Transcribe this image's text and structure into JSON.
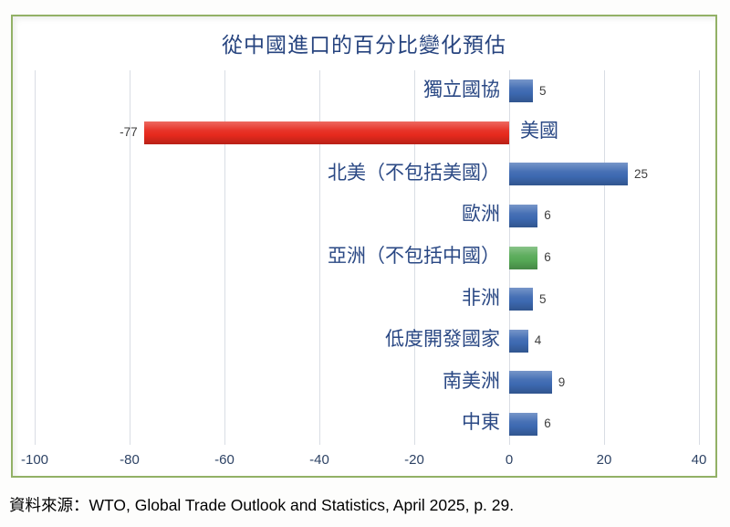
{
  "chart_data": {
    "type": "bar",
    "orientation": "horizontal",
    "title": "從中國進口的百分比變化預估",
    "categories": [
      "獨立國協",
      "美國",
      "北美（不包括美國）",
      "歐洲",
      "亞洲（不包括中國）",
      "非洲",
      "低度開發國家",
      "南美洲",
      "中東"
    ],
    "values": [
      5,
      -77,
      25,
      6,
      6,
      5,
      4,
      9,
      6
    ],
    "bar_colors": [
      "#3D69B1",
      "#E6291D",
      "#3D69B1",
      "#3D69B1",
      "#56A956",
      "#3D69B1",
      "#3D69B1",
      "#3D69B1",
      "#3D69B1"
    ],
    "xticks": [
      -100,
      -80,
      -60,
      -40,
      -20,
      0,
      20,
      40
    ],
    "xlim": [
      -100,
      40
    ],
    "grid": true,
    "value_labels": true,
    "legend": "none",
    "styles": {
      "title_color": "#27447F",
      "category_label_color": "#2A4884",
      "value_label_color": "#3F3F3F",
      "tick_label_color": "#2E4365",
      "gridline_color": "#D9DDE4",
      "frame_border_color": "#92B166",
      "plot_background": "#ffffff"
    }
  },
  "footer": {
    "source_note": "資料來源：WTO, Global Trade Outlook and Statistics, April 2025, p. 29."
  }
}
